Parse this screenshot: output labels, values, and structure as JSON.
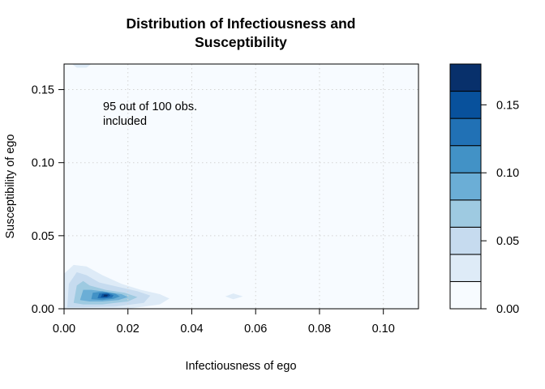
{
  "chart_data": {
    "type": "heatmap",
    "title": [
      "Distribution of Infectiousness and",
      "Susceptibility"
    ],
    "xlabel": "Infectiousness of ego",
    "ylabel": "Susceptibility of ego",
    "xlim": [
      0.0,
      0.111
    ],
    "ylim": [
      0.0,
      0.1675
    ],
    "x_ticks": [
      0.0,
      0.02,
      0.04,
      0.06,
      0.08,
      0.1
    ],
    "x_tick_labels": [
      "0.00",
      "0.02",
      "0.04",
      "0.06",
      "0.08",
      "0.10"
    ],
    "y_ticks": [
      0.0,
      0.05,
      0.1,
      0.15
    ],
    "y_tick_labels": [
      "0.00",
      "0.05",
      "0.10",
      "0.15"
    ],
    "grid": true,
    "annotation": [
      "95 out of 100 obs.",
      "included"
    ],
    "annotation_position": [
      0.0125,
      0.1375
    ],
    "colorbar": {
      "range": [
        0.0,
        0.18
      ],
      "levels": [
        0.0,
        0.02,
        0.04,
        0.06,
        0.08,
        0.1,
        0.12,
        0.14,
        0.16,
        0.18
      ],
      "colors": [
        "#f7fbff",
        "#deebf7",
        "#c6dbef",
        "#9ecae1",
        "#6baed6",
        "#4292c6",
        "#2171b5",
        "#08519c",
        "#08306b"
      ],
      "ticks": [
        0.0,
        0.05,
        0.1,
        0.15
      ],
      "tick_labels": [
        "0.00",
        "0.05",
        "0.10",
        "0.15"
      ]
    },
    "density_regions": [
      {
        "level": 1,
        "points": [
          [
            0.0,
            0.0
          ],
          [
            0.0,
            0.024
          ],
          [
            0.003,
            0.03
          ],
          [
            0.007,
            0.029
          ],
          [
            0.012,
            0.023
          ],
          [
            0.018,
            0.017
          ],
          [
            0.024,
            0.013
          ],
          [
            0.03,
            0.01
          ],
          [
            0.033,
            0.007
          ],
          [
            0.03,
            0.003
          ],
          [
            0.02,
            0.0
          ]
        ]
      },
      {
        "level": 2,
        "points": [
          [
            0.001,
            0.001
          ],
          [
            0.0015,
            0.017
          ],
          [
            0.004,
            0.025
          ],
          [
            0.007,
            0.023
          ],
          [
            0.011,
            0.018
          ],
          [
            0.017,
            0.015
          ],
          [
            0.023,
            0.012
          ],
          [
            0.027,
            0.009
          ],
          [
            0.025,
            0.004
          ],
          [
            0.016,
            0.0015
          ],
          [
            0.006,
            0.001
          ]
        ]
      },
      {
        "level": 3,
        "points": [
          [
            0.003,
            0.004
          ],
          [
            0.004,
            0.016
          ],
          [
            0.006,
            0.019
          ],
          [
            0.008,
            0.016
          ],
          [
            0.013,
            0.013
          ],
          [
            0.019,
            0.011
          ],
          [
            0.023,
            0.008
          ],
          [
            0.02,
            0.005
          ],
          [
            0.012,
            0.003
          ],
          [
            0.006,
            0.003
          ]
        ]
      },
      {
        "level": 4,
        "points": [
          [
            0.005,
            0.006
          ],
          [
            0.006,
            0.013
          ],
          [
            0.0085,
            0.013
          ],
          [
            0.012,
            0.012
          ],
          [
            0.018,
            0.01
          ],
          [
            0.02,
            0.008
          ],
          [
            0.017,
            0.006
          ],
          [
            0.012,
            0.005
          ],
          [
            0.008,
            0.005
          ]
        ]
      },
      {
        "level": 5,
        "points": [
          [
            0.0085,
            0.0065
          ],
          [
            0.009,
            0.011
          ],
          [
            0.012,
            0.0118
          ],
          [
            0.016,
            0.0103
          ],
          [
            0.0175,
            0.0085
          ],
          [
            0.0155,
            0.0068
          ],
          [
            0.012,
            0.006
          ]
        ]
      },
      {
        "level": 6,
        "points": [
          [
            0.0105,
            0.0072
          ],
          [
            0.011,
            0.0105
          ],
          [
            0.0135,
            0.0108
          ],
          [
            0.0155,
            0.0093
          ],
          [
            0.015,
            0.0076
          ],
          [
            0.0125,
            0.007
          ]
        ]
      },
      {
        "level": 7,
        "points": [
          [
            0.0115,
            0.0078
          ],
          [
            0.012,
            0.0102
          ],
          [
            0.014,
            0.0102
          ],
          [
            0.0145,
            0.009
          ],
          [
            0.0135,
            0.0079
          ]
        ]
      },
      {
        "level": 8,
        "points": [
          [
            0.0123,
            0.0083
          ],
          [
            0.0126,
            0.0097
          ],
          [
            0.0137,
            0.0095
          ],
          [
            0.0135,
            0.0085
          ]
        ]
      },
      {
        "level": 1,
        "points": [
          [
            0.0505,
            0.0085
          ],
          [
            0.053,
            0.0105
          ],
          [
            0.056,
            0.0085
          ],
          [
            0.053,
            0.0065
          ]
        ]
      },
      {
        "level": 1,
        "points": [
          [
            0.0025,
            0.1675
          ],
          [
            0.004,
            0.165
          ],
          [
            0.007,
            0.165
          ],
          [
            0.0085,
            0.1675
          ]
        ]
      }
    ]
  }
}
